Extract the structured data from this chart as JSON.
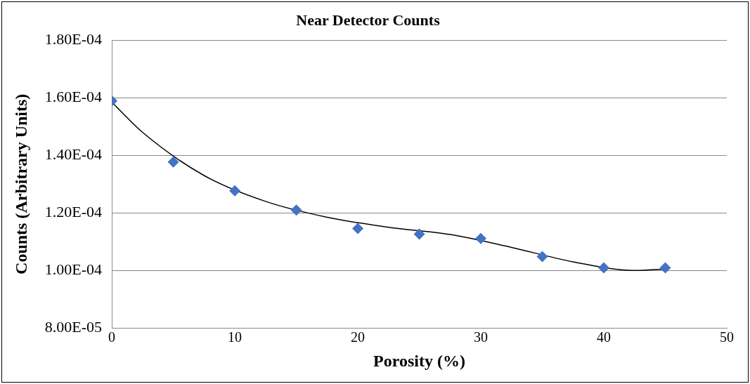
{
  "chart_data": {
    "type": "scatter",
    "title": "Near Detector Counts",
    "xlabel": "Porosity (%)",
    "ylabel": "Counts (Arbitrary Units)",
    "xlim": [
      0,
      50
    ],
    "xticks": [
      0,
      10,
      20,
      30,
      40,
      50
    ],
    "ylim": [
      8e-05,
      0.00018
    ],
    "yticks": [
      {
        "value": 8e-05,
        "label": "8.00E-05"
      },
      {
        "value": 0.0001,
        "label": "1.00E-04"
      },
      {
        "value": 0.00012,
        "label": "1.20E-04"
      },
      {
        "value": 0.00014,
        "label": "1.40E-04"
      },
      {
        "value": 0.00016,
        "label": "1.60E-04"
      },
      {
        "value": 0.00018,
        "label": "1.80E-04"
      }
    ],
    "grid": "y",
    "legend": false,
    "marker": "diamond",
    "series": [
      {
        "color": "#4472c4",
        "x": [
          0,
          5,
          10,
          15,
          20,
          25,
          30,
          35,
          40,
          45
        ],
        "values": [
          0.0001589,
          0.0001377,
          0.0001277,
          0.000121,
          0.0001146,
          0.0001126,
          0.0001111,
          0.0001048,
          0.0001009,
          0.0001009
        ]
      },
      {
        "type": "line",
        "color": "#000000",
        "marker": "none",
        "line_style": "solid",
        "x": [
          0,
          2.5,
          7.5,
          12.5,
          17.5,
          22.5,
          27.5,
          32.5,
          37.5,
          42.5,
          45
        ],
        "values": [
          0.0001585,
          0.000148,
          0.000133,
          0.000124,
          0.0001185,
          0.000115,
          0.0001125,
          0.000108,
          0.000103,
          0.0001,
          0.0001005
        ]
      }
    ]
  }
}
